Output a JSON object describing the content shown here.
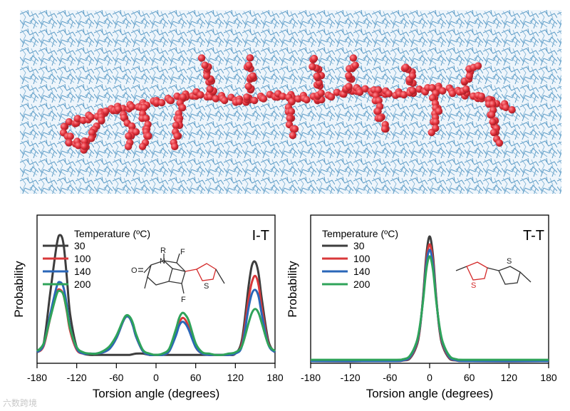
{
  "colors": {
    "t30": "#3d3d3d",
    "t100": "#d9383a",
    "t140": "#2a66b8",
    "t200": "#2fa35a",
    "solvent": "#5b9bc6",
    "polymer": "#e0303a"
  },
  "watermark": "六数跨境",
  "chart_data": [
    {
      "type": "line",
      "panel_label": "I-T",
      "xlabel": "Torsion angle (degrees)",
      "ylabel": "Probability",
      "xlim": [
        -180,
        180
      ],
      "xticks": [
        -180,
        -120,
        -60,
        0,
        60,
        120,
        180
      ],
      "yticks_shown": false,
      "legend_title": "Temperature (ºC)",
      "legend_position": "top-left",
      "inset_structure": {
        "atoms": [
          "O",
          "N",
          "R",
          "F",
          "F",
          "S"
        ]
      },
      "x": [
        -180,
        -170,
        -160,
        -150,
        -145,
        -140,
        -135,
        -130,
        -120,
        -110,
        -100,
        -90,
        -80,
        -70,
        -60,
        -50,
        -45,
        -40,
        -35,
        -30,
        -20,
        -10,
        0,
        10,
        20,
        30,
        35,
        40,
        45,
        50,
        60,
        70,
        80,
        90,
        100,
        110,
        120,
        130,
        140,
        145,
        150,
        155,
        160,
        170,
        180
      ],
      "series": [
        {
          "name": "30",
          "color_key": "t30",
          "values": [
            0.03,
            0.1,
            0.5,
            0.88,
            0.95,
            0.88,
            0.62,
            0.33,
            0.07,
            0.02,
            0.01,
            0.01,
            0.01,
            0.01,
            0.01,
            0.01,
            0.01,
            0.01,
            0.015,
            0.02,
            0.02,
            0.01,
            0.01,
            0.01,
            0.01,
            0.01,
            0.01,
            0.01,
            0.01,
            0.01,
            0.01,
            0.01,
            0.01,
            0.01,
            0.01,
            0.01,
            0.02,
            0.13,
            0.55,
            0.71,
            0.74,
            0.65,
            0.45,
            0.12,
            0.03
          ]
        },
        {
          "name": "100",
          "color_key": "t100",
          "values": [
            0.03,
            0.08,
            0.3,
            0.5,
            0.52,
            0.48,
            0.35,
            0.2,
            0.05,
            0.02,
            0.02,
            0.02,
            0.03,
            0.06,
            0.14,
            0.27,
            0.31,
            0.3,
            0.24,
            0.15,
            0.04,
            0.01,
            0.01,
            0.01,
            0.04,
            0.17,
            0.26,
            0.3,
            0.28,
            0.22,
            0.07,
            0.02,
            0.01,
            0.01,
            0.01,
            0.01,
            0.02,
            0.1,
            0.45,
            0.58,
            0.63,
            0.56,
            0.38,
            0.1,
            0.03
          ]
        },
        {
          "name": "140",
          "color_key": "t140",
          "values": [
            0.03,
            0.09,
            0.33,
            0.55,
            0.58,
            0.54,
            0.4,
            0.23,
            0.06,
            0.02,
            0.02,
            0.02,
            0.03,
            0.06,
            0.14,
            0.27,
            0.31,
            0.3,
            0.24,
            0.15,
            0.04,
            0.01,
            0.01,
            0.01,
            0.04,
            0.16,
            0.24,
            0.27,
            0.25,
            0.2,
            0.07,
            0.02,
            0.01,
            0.01,
            0.01,
            0.01,
            0.02,
            0.08,
            0.38,
            0.49,
            0.52,
            0.47,
            0.33,
            0.09,
            0.03
          ]
        },
        {
          "name": "200",
          "color_key": "t200",
          "values": [
            0.04,
            0.1,
            0.3,
            0.49,
            0.51,
            0.48,
            0.36,
            0.22,
            0.07,
            0.03,
            0.02,
            0.02,
            0.04,
            0.08,
            0.16,
            0.28,
            0.32,
            0.31,
            0.26,
            0.17,
            0.05,
            0.02,
            0.01,
            0.02,
            0.06,
            0.21,
            0.3,
            0.34,
            0.32,
            0.27,
            0.1,
            0.03,
            0.02,
            0.01,
            0.01,
            0.02,
            0.03,
            0.08,
            0.26,
            0.34,
            0.37,
            0.34,
            0.26,
            0.09,
            0.04
          ]
        }
      ]
    },
    {
      "type": "line",
      "panel_label": "T-T",
      "xlabel": "Torsion angle (degrees)",
      "ylabel": "Probability",
      "xlim": [
        -180,
        180
      ],
      "xticks": [
        -180,
        -120,
        -60,
        0,
        60,
        120,
        180
      ],
      "yticks_shown": false,
      "legend_title": "Temperature (ºC)",
      "legend_position": "top-left",
      "inset_structure": {
        "atoms": [
          "S",
          "S"
        ]
      },
      "x": [
        -180,
        -60,
        -40,
        -30,
        -20,
        -15,
        -10,
        -5,
        0,
        5,
        10,
        15,
        20,
        30,
        40,
        60,
        180
      ],
      "series": [
        {
          "name": "30",
          "color_key": "t30",
          "values": [
            0.0,
            0.0,
            0.005,
            0.02,
            0.11,
            0.23,
            0.48,
            0.8,
            0.94,
            0.8,
            0.48,
            0.23,
            0.11,
            0.02,
            0.005,
            0.0,
            0.0
          ]
        },
        {
          "name": "100",
          "color_key": "t100",
          "values": [
            0.0,
            0.0,
            0.006,
            0.025,
            0.12,
            0.24,
            0.47,
            0.76,
            0.88,
            0.76,
            0.47,
            0.24,
            0.12,
            0.025,
            0.006,
            0.0,
            0.0
          ]
        },
        {
          "name": "140",
          "color_key": "t140",
          "values": [
            0.0,
            0.0,
            0.007,
            0.03,
            0.13,
            0.25,
            0.46,
            0.73,
            0.84,
            0.73,
            0.46,
            0.25,
            0.13,
            0.03,
            0.007,
            0.0,
            0.0
          ]
        },
        {
          "name": "200",
          "color_key": "t200",
          "values": [
            0.01,
            0.01,
            0.015,
            0.04,
            0.14,
            0.26,
            0.45,
            0.69,
            0.79,
            0.69,
            0.45,
            0.26,
            0.14,
            0.04,
            0.015,
            0.01,
            0.01
          ]
        }
      ]
    }
  ]
}
